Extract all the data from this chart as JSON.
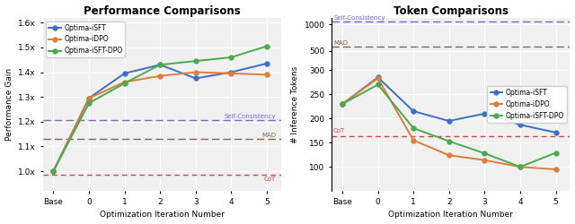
{
  "left_title": "Performance Comparisons",
  "right_title": "Token Comparisons",
  "x_labels": [
    "Base",
    "0",
    "1",
    "2",
    "3",
    "4",
    "5"
  ],
  "x_values": [
    0,
    1,
    2,
    3,
    4,
    5,
    6
  ],
  "perf": {
    "iSFT": [
      1.0,
      1.295,
      1.395,
      1.43,
      1.375,
      1.4,
      1.435
    ],
    "iDPO": [
      1.0,
      1.295,
      1.36,
      1.385,
      1.4,
      1.395,
      1.39
    ],
    "iSFT_DPO": [
      1.0,
      1.275,
      1.355,
      1.43,
      1.445,
      1.46,
      1.505
    ]
  },
  "perf_baselines": {
    "Self-Consistency": 1.205,
    "MAD": 1.13,
    "CoT": 0.985
  },
  "token": {
    "iSFT": [
      230,
      285,
      215,
      195,
      210,
      187,
      171
    ],
    "iDPO": [
      230,
      283,
      155,
      124,
      114,
      100,
      95
    ],
    "iSFT_DPO": [
      230,
      270,
      180,
      153,
      128,
      100,
      129
    ]
  },
  "token_baselines": {
    "Self-Consistency": 1080,
    "MAD": 560,
    "CoT": 163
  },
  "colors": {
    "iSFT": "#3a6fc4",
    "iDPO": "#e07b3a",
    "iSFT_DPO": "#4aaa4a",
    "Self-Consistency": "#7b68cc",
    "MAD": "#8b6344",
    "CoT": "#cc4444"
  },
  "perf_ylim": [
    0.92,
    1.62
  ],
  "perf_yticks": [
    1.0,
    1.1,
    1.2,
    1.3,
    1.4,
    1.5,
    1.6
  ],
  "token_ylim": [
    50,
    1200
  ],
  "token_yticks": [
    100,
    150,
    200,
    250,
    300,
    500,
    1000
  ],
  "ylabel_left": "Performance Gain",
  "ylabel_right": "# Inference Tokens",
  "xlabel": "Optimization Iteration Number",
  "bg_color": "#f0f0f0"
}
